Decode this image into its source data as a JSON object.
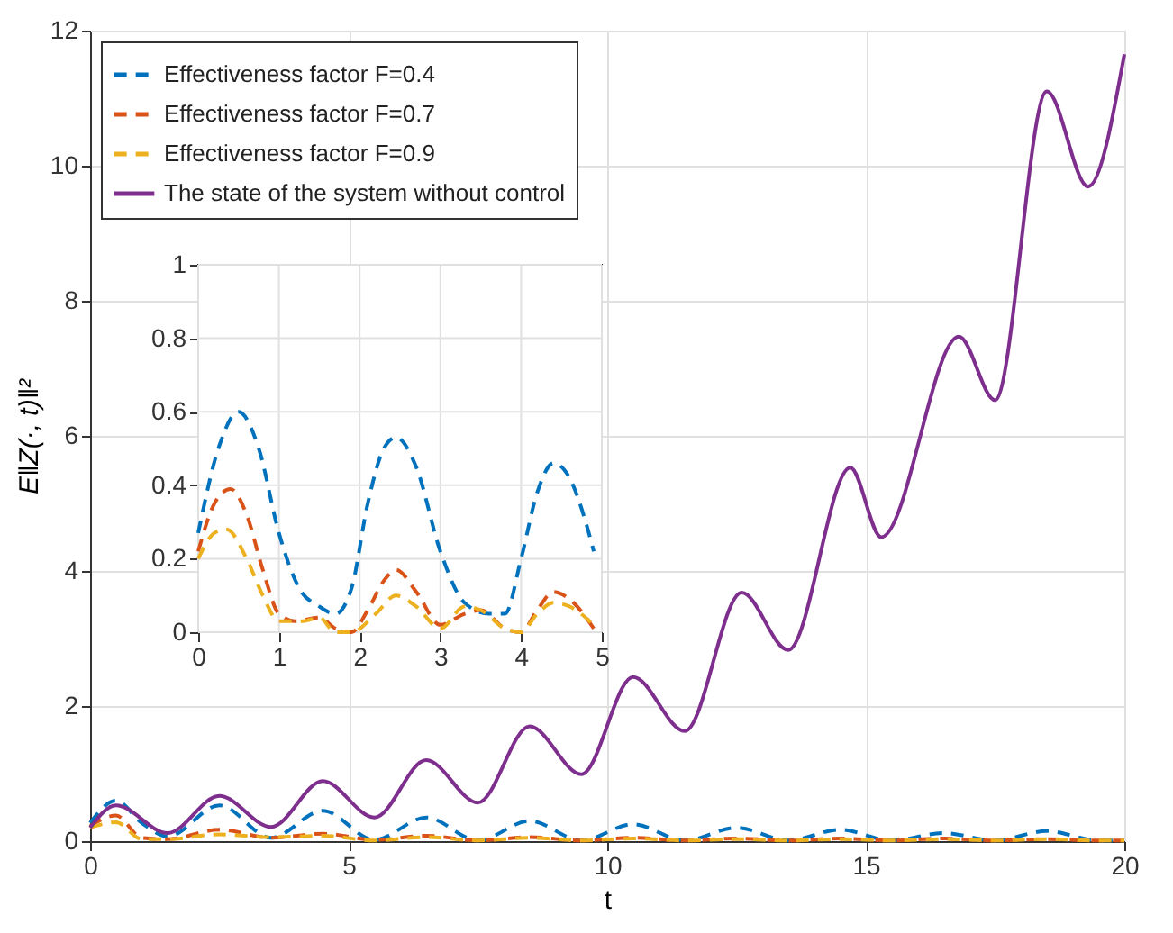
{
  "chart_data": [
    {
      "type": "line",
      "xlabel": "t",
      "ylabel": "E‖Z(·, t)‖²",
      "xlim": [
        0,
        20
      ],
      "ylim": [
        0,
        12
      ],
      "xticks": [
        0,
        5,
        10,
        15,
        20
      ],
      "yticks": [
        0,
        2,
        4,
        6,
        8,
        10,
        12
      ],
      "grid": true,
      "legend": "top left",
      "series": [
        {
          "name": "Effectiveness factor F=0.4",
          "color": "#0072bd",
          "line_style": "dashed",
          "x": [
            0,
            0.5,
            1,
            1.5,
            2.5,
            3.5,
            4.5,
            5.5,
            6.5,
            7.5,
            8.5,
            9.5,
            10.5,
            11.5,
            12.5,
            13.5,
            14.5,
            15.5,
            16.5,
            17.5,
            18.5,
            19.5,
            20
          ],
          "values": [
            0.27,
            0.6,
            0.27,
            0.07,
            0.53,
            0.05,
            0.45,
            0.02,
            0.35,
            0.01,
            0.3,
            0.01,
            0.25,
            0.01,
            0.2,
            0.01,
            0.17,
            0.01,
            0.12,
            0.01,
            0.15,
            0.01,
            0.01
          ]
        },
        {
          "name": "Effectiveness factor F=0.7",
          "color": "#d95319",
          "line_style": "dashed",
          "x": [
            0,
            0.5,
            1,
            1.5,
            2.5,
            3.5,
            4.5,
            5.5,
            6.5,
            7.5,
            8.5,
            9.5,
            10.5,
            11.5,
            12.5,
            13.5,
            14.5,
            15.5,
            16.5,
            17.5,
            18.5,
            19.5,
            20
          ],
          "values": [
            0.22,
            0.38,
            0.05,
            0.03,
            0.17,
            0.05,
            0.11,
            0.02,
            0.08,
            0.01,
            0.06,
            0.01,
            0.05,
            0.01,
            0.04,
            0.01,
            0.04,
            0.01,
            0.04,
            0.01,
            0.03,
            0.01,
            0.01
          ]
        },
        {
          "name": "Effectiveness factor F=0.9",
          "color": "#edb120",
          "line_style": "dashed",
          "x": [
            0,
            0.5,
            1,
            1.5,
            2.5,
            3.5,
            4.5,
            5.5,
            6.5,
            7.5,
            8.5,
            9.5,
            10.5,
            11.5,
            12.5,
            13.5,
            14.5,
            15.5,
            16.5,
            17.5,
            18.5,
            19.5,
            20
          ],
          "values": [
            0.2,
            0.28,
            0.03,
            0.03,
            0.1,
            0.06,
            0.08,
            0.01,
            0.06,
            0.01,
            0.05,
            0.01,
            0.04,
            0.01,
            0.03,
            0.01,
            0.03,
            0.01,
            0.03,
            0.01,
            0.03,
            0.01,
            0.01
          ]
        },
        {
          "name": "The state of the system without control",
          "color": "#7e2f8e",
          "line_style": "solid",
          "x": [
            0,
            0.5,
            1.5,
            2.5,
            3.5,
            4.5,
            5.5,
            6.5,
            7.5,
            8.5,
            9.5,
            10.5,
            11.5,
            12.6,
            13.5,
            14.7,
            15.3,
            16.8,
            17.5,
            18.5,
            19.3,
            20
          ],
          "values": [
            0.2,
            0.53,
            0.12,
            0.67,
            0.21,
            0.89,
            0.35,
            1.2,
            0.57,
            1.7,
            0.99,
            2.43,
            1.63,
            3.68,
            2.83,
            5.53,
            4.5,
            7.47,
            6.53,
            11.1,
            9.69,
            11.65
          ]
        }
      ]
    },
    {
      "type": "line",
      "xlim": [
        0,
        5
      ],
      "ylim": [
        0,
        1
      ],
      "xticks": [
        0,
        1,
        2,
        3,
        4,
        5
      ],
      "yticks": [
        0,
        0.2,
        0.4,
        0.6,
        0.8,
        1
      ],
      "grid": true,
      "series": [
        {
          "color": "#0072bd",
          "line_style": "dashed",
          "x": [
            0,
            0.25,
            0.5,
            0.75,
            1,
            1.25,
            1.5,
            1.7,
            1.9,
            2.1,
            2.3,
            2.45,
            2.7,
            3,
            3.3,
            3.6,
            3.8,
            4,
            4.2,
            4.4,
            4.6,
            4.8,
            4.9
          ],
          "values": [
            0.27,
            0.5,
            0.6,
            0.5,
            0.27,
            0.12,
            0.07,
            0.05,
            0.12,
            0.35,
            0.5,
            0.53,
            0.45,
            0.22,
            0.08,
            0.05,
            0.05,
            0.2,
            0.38,
            0.46,
            0.42,
            0.3,
            0.22
          ]
        },
        {
          "color": "#d95319",
          "line_style": "dashed",
          "x": [
            0,
            0.2,
            0.4,
            0.6,
            0.8,
            1,
            1.2,
            1.5,
            1.7,
            1.9,
            2.1,
            2.3,
            2.45,
            2.7,
            3,
            3.3,
            3.5,
            3.8,
            4,
            4.2,
            4.4,
            4.6,
            4.9
          ],
          "values": [
            0.22,
            0.35,
            0.39,
            0.32,
            0.17,
            0.05,
            0.03,
            0.04,
            0.01,
            0,
            0.06,
            0.14,
            0.17,
            0.11,
            0.02,
            0.05,
            0.06,
            0.01,
            0,
            0.06,
            0.11,
            0.09,
            0.01
          ]
        },
        {
          "color": "#edb120",
          "line_style": "dashed",
          "x": [
            0,
            0.2,
            0.35,
            0.6,
            0.8,
            1,
            1.3,
            1.5,
            1.7,
            1.9,
            2.2,
            2.45,
            2.7,
            3,
            3.3,
            3.5,
            3.8,
            4,
            4.2,
            4.4,
            4.6,
            4.9
          ],
          "values": [
            0.2,
            0.27,
            0.28,
            0.2,
            0.1,
            0.03,
            0.03,
            0.04,
            0,
            0,
            0.05,
            0.1,
            0.07,
            0.01,
            0.07,
            0.06,
            0.01,
            0,
            0.05,
            0.08,
            0.07,
            0.02
          ]
        }
      ]
    }
  ]
}
